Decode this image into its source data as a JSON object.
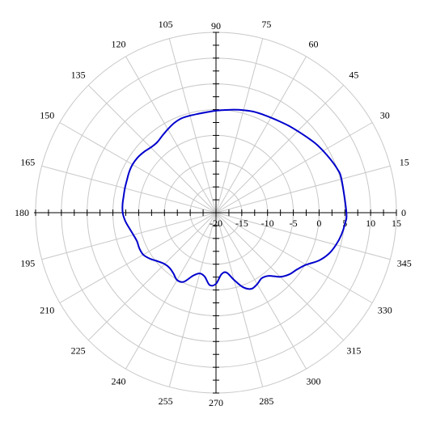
{
  "chart_data": {
    "type": "polar-line",
    "title": "",
    "angle_unit": "degrees",
    "angle_ticks": [
      0,
      15,
      30,
      45,
      60,
      75,
      90,
      105,
      120,
      135,
      150,
      165,
      180,
      195,
      210,
      225,
      240,
      255,
      270,
      285,
      300,
      315,
      330,
      345
    ],
    "angle_labels": [
      "0",
      "15",
      "30",
      "45",
      "60",
      "75",
      "90",
      "105",
      "120",
      "135",
      "150",
      "165",
      "180",
      "195",
      "210",
      "225",
      "240",
      "255",
      "270",
      "285",
      "300",
      "315",
      "330",
      "345"
    ],
    "radial_range": [
      -20,
      15
    ],
    "radial_ticks": [
      -20,
      -15,
      -10,
      -5,
      0,
      5,
      10,
      15
    ],
    "radial_labels": [
      "-20",
      "-15",
      "-10",
      "-5",
      "0",
      "5",
      "10",
      "15"
    ],
    "grid": true,
    "colors": {
      "series": "#0000cc",
      "grid": "#c8c8c8",
      "axis": "#000000"
    },
    "series": [
      {
        "theta": [
          0,
          15,
          20,
          25,
          30,
          35,
          40,
          45,
          50,
          55,
          60,
          65,
          70,
          75,
          80,
          85,
          90,
          95,
          100,
          105,
          110,
          115,
          120,
          125,
          130,
          135,
          140,
          145,
          150,
          155,
          160,
          165,
          170,
          175,
          180,
          185,
          190,
          195,
          200,
          205,
          210,
          215,
          220,
          225,
          230,
          235,
          240,
          245,
          250,
          255,
          260,
          265,
          270,
          275,
          280,
          285,
          290,
          295,
          300,
          305,
          310,
          315,
          320,
          325,
          330,
          335,
          340,
          345,
          350,
          355
        ],
        "r": [
          5.3,
          5.2,
          5.0,
          4.5,
          4.0,
          3.5,
          2.9,
          2.4,
          2.0,
          1.6,
          1.3,
          1.1,
          0.9,
          0.6,
          0.3,
          0.0,
          -0.2,
          -0.4,
          -0.5,
          -0.5,
          -0.5,
          -0.8,
          -1.3,
          -1.8,
          -2.2,
          -2.1,
          -1.7,
          -1.4,
          -1.3,
          -1.4,
          -1.6,
          -1.7,
          -1.8,
          -1.8,
          -1.9,
          -2.3,
          -2.9,
          -3.4,
          -3.7,
          -3.6,
          -3.7,
          -4.4,
          -5.3,
          -5.9,
          -6.0,
          -5.6,
          -4.9,
          -5.2,
          -7.0,
          -7.8,
          -7.4,
          -5.9,
          -6.2,
          -8.0,
          -8.2,
          -6.5,
          -4.6,
          -3.7,
          -4.0,
          -4.5,
          -4.0,
          -2.4,
          -1.4,
          -0.8,
          0.2,
          2.0,
          3.3,
          4.1,
          4.7,
          5.1
        ]
      }
    ]
  }
}
